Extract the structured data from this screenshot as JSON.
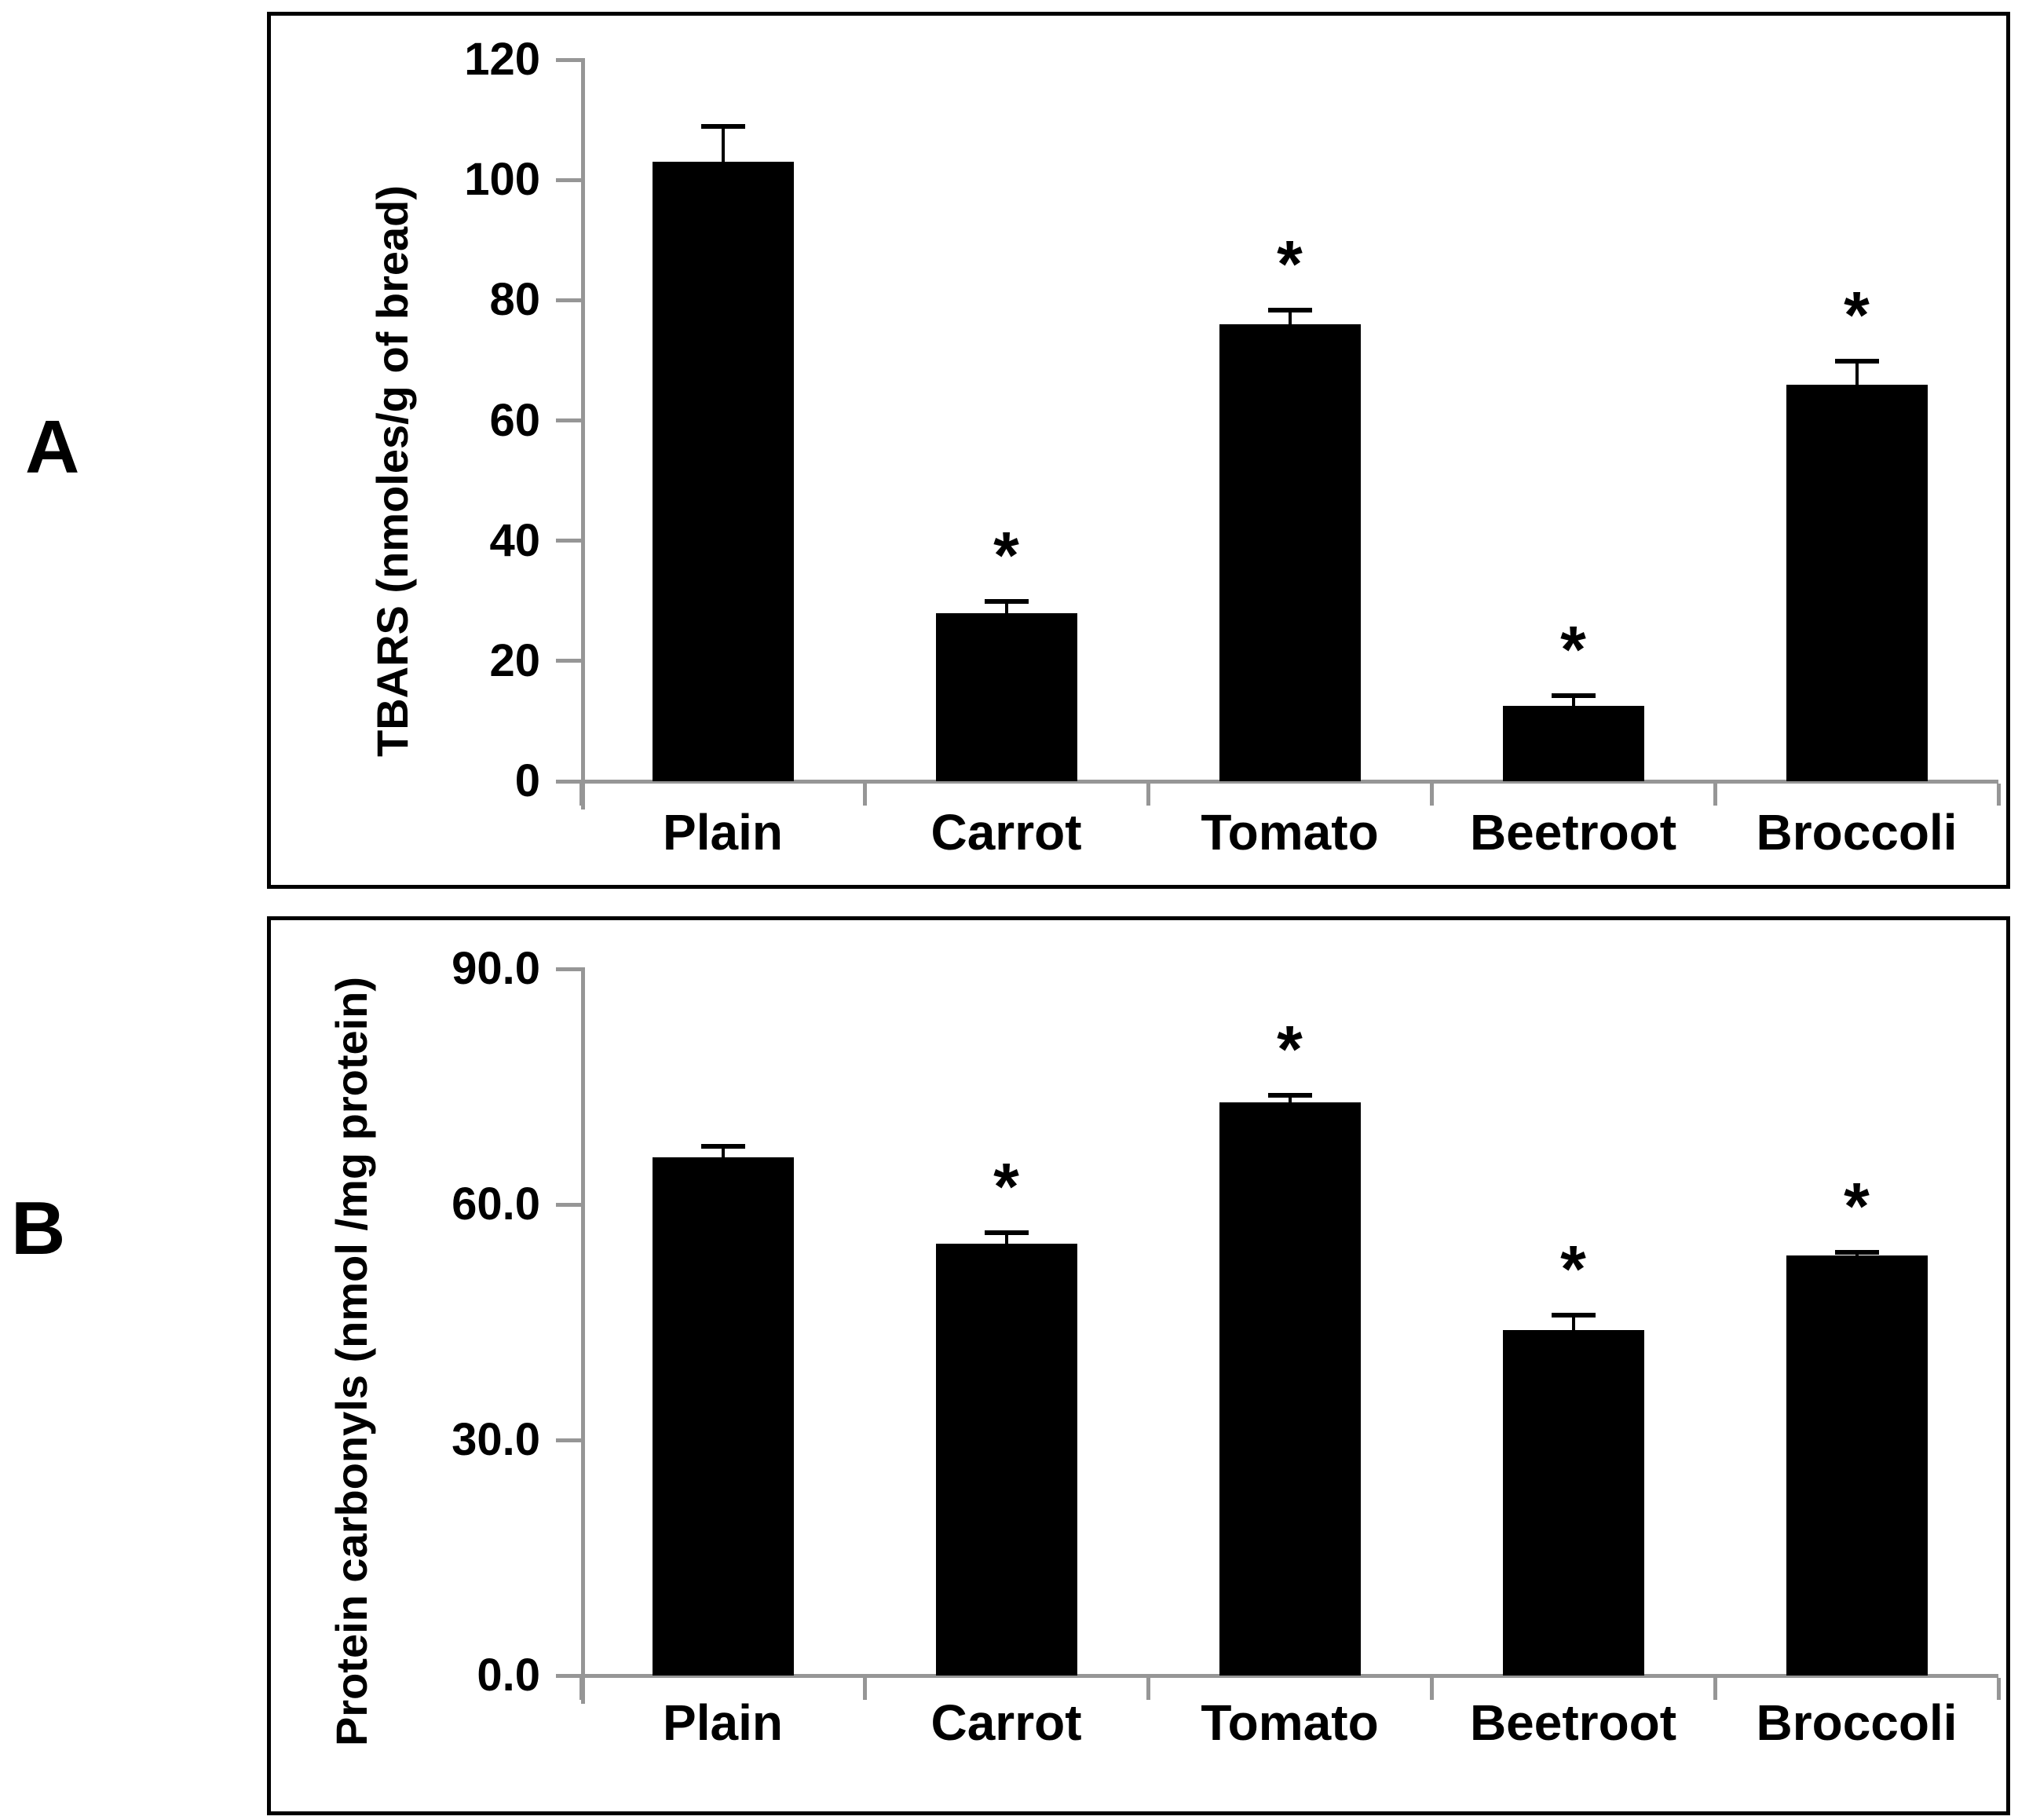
{
  "figure": {
    "background": "#ffffff",
    "panels": [
      {
        "letter": "A"
      },
      {
        "letter": "B"
      }
    ]
  },
  "chart_data": [
    {
      "type": "bar",
      "panel": "A",
      "title": "",
      "categories": [
        "Plain",
        "Carrot",
        "Tomato",
        "Beetroot",
        "Broccoli"
      ],
      "values": [
        103,
        28,
        76,
        12.5,
        66
      ],
      "errors": [
        6,
        2,
        2.5,
        1.8,
        4
      ],
      "significance": [
        "",
        "*",
        "*",
        "*",
        "*"
      ],
      "ylabel": "TBARS (nmoles/g of bread)",
      "xlabel": "",
      "ylim": [
        0,
        120
      ],
      "yticks": [
        0,
        20,
        40,
        60,
        80,
        100,
        120
      ],
      "ytick_labels": [
        "0",
        "20",
        "40",
        "60",
        "80",
        "100",
        "120"
      ],
      "bar_color": "#000000",
      "axis_color": "#969696",
      "grid": false,
      "legend": null
    },
    {
      "type": "bar",
      "panel": "B",
      "title": "",
      "categories": [
        "Plain",
        "Carrot",
        "Tomato",
        "Beetroot",
        "Broccoli"
      ],
      "values": [
        66,
        55,
        73,
        44,
        53.5
      ],
      "errors": [
        1.5,
        1.5,
        1,
        2,
        0.5
      ],
      "significance": [
        "",
        "*",
        "*",
        "*",
        "*"
      ],
      "ylabel": "Protein carbonyls (nmol /mg protein)",
      "xlabel": "",
      "ylim": [
        0,
        90
      ],
      "yticks": [
        0,
        30,
        60,
        90
      ],
      "ytick_labels": [
        "0.0",
        "30.0",
        "60.0",
        "90.0"
      ],
      "bar_color": "#000000",
      "axis_color": "#969696",
      "grid": false,
      "legend": null
    }
  ]
}
